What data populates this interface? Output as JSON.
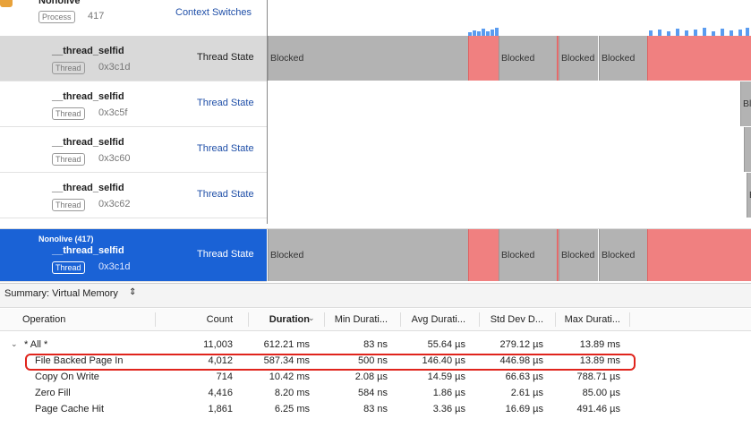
{
  "process": {
    "name": "Nonolive",
    "badge": "Process",
    "pid": "417",
    "track": "Context Switches"
  },
  "threads": [
    {
      "name": "__thread_selfid",
      "badge": "Thread",
      "tid": "0x3c1d",
      "track": "Thread State",
      "states": [
        "Blocked",
        "Blocked",
        "Blocked",
        "Blocked"
      ]
    },
    {
      "name": "__thread_selfid",
      "badge": "Thread",
      "tid": "0x3c5f",
      "track": "Thread State",
      "states": [
        "Blocked"
      ]
    },
    {
      "name": "__thread_selfid",
      "badge": "Thread",
      "tid": "0x3c60",
      "track": "Thread State",
      "states": []
    },
    {
      "name": "__thread_selfid",
      "badge": "Thread",
      "tid": "0x3c62",
      "track": "Thread State",
      "states": [
        "Blocked"
      ]
    }
  ],
  "selected": {
    "process": "Nonolive (417)",
    "name": "__thread_selfid",
    "badge": "Thread",
    "tid": "0x3c1d",
    "track": "Thread State",
    "states": [
      "Blocked",
      "Blocked",
      "Blocked",
      "Blocked"
    ]
  },
  "summary": "Summary: Virtual Memory",
  "table": {
    "columns": [
      "Operation",
      "Count",
      "Duration",
      "Min Durati...",
      "Avg Durati...",
      "Std Dev D...",
      "Max Durati..."
    ],
    "rows": [
      [
        "* All *",
        "11,003",
        "612.21 ms",
        "83 ns",
        "55.64 µs",
        "279.12 µs",
        "13.89 ms"
      ],
      [
        "File Backed Page In",
        "4,012",
        "587.34 ms",
        "500 ns",
        "146.40 µs",
        "446.98 µs",
        "13.89 ms"
      ],
      [
        "Copy On Write",
        "714",
        "10.42 ms",
        "2.08 µs",
        "14.59 µs",
        "66.63 µs",
        "788.71 µs"
      ],
      [
        "Zero Fill",
        "4,416",
        "8.20 ms",
        "584 ns",
        "1.86 µs",
        "2.61 µs",
        "85.00 µs"
      ],
      [
        "Page Cache Hit",
        "1,861",
        "6.25 ms",
        "83 ns",
        "3.36 µs",
        "16.69 µs",
        "491.46 µs"
      ]
    ]
  }
}
